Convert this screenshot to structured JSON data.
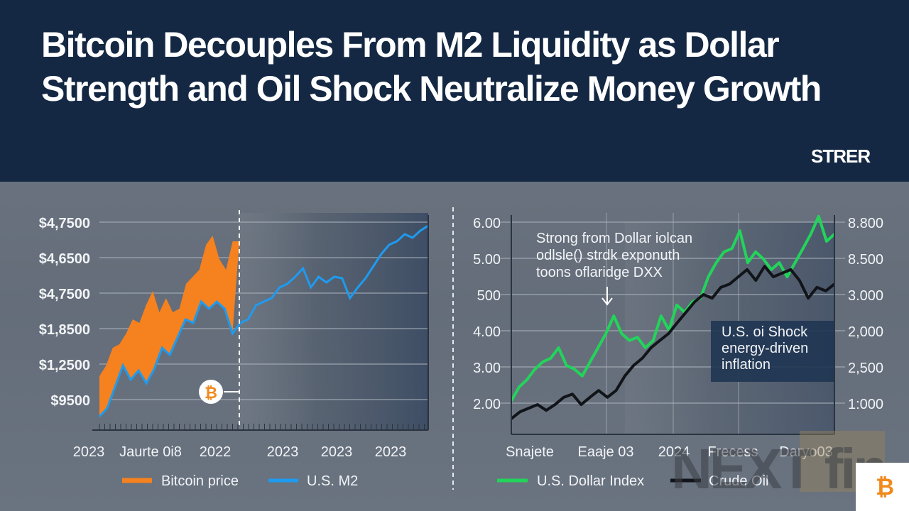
{
  "header": {
    "title": "Bitcoin Decouples From M2 Liquidity as Dollar Strength and Oil Shock Neutralize Money Growth",
    "logo": "STRER"
  },
  "watermark": {
    "text": "NEXT fin",
    "corner_icon": "bitcoin-icon"
  },
  "chart_data": [
    {
      "type": "area+line",
      "ylabels": [
        "$9500",
        "$1,2500",
        "$1,8500",
        "$4,7500",
        "$4,6500",
        "$4,7500"
      ],
      "ytick_levels": [
        0,
        1,
        2,
        3,
        4,
        5
      ],
      "xlabels": [
        "2023",
        "Jaurte 0i8",
        "2022",
        "2023",
        "2023",
        "2023"
      ],
      "grid": true,
      "legend": "bottom",
      "marker_icon": "bitcoin-icon",
      "series": [
        {
          "name": "Bitcoin price",
          "color": "#f5811f",
          "kind": "area",
          "values": [
            0.66,
            0.96,
            1.46,
            1.56,
            1.86,
            2.26,
            2.16,
            2.66,
            3.06,
            2.46,
            2.86,
            2.46,
            2.56,
            3.26,
            3.46,
            3.66,
            4.36,
            4.62,
            3.96,
            3.66,
            4.46,
            4.46
          ]
        },
        {
          "name": "U.S. M2",
          "color": "#1e9bf0",
          "kind": "line",
          "values": [
            -0.48,
            -0.24,
            0.36,
            0.96,
            0.56,
            0.82,
            0.46,
            0.86,
            1.46,
            1.26,
            1.76,
            2.26,
            2.16,
            2.76,
            2.56,
            2.76,
            2.56,
            1.86,
            2.16,
            2.26,
            2.66,
            2.76,
            2.86,
            3.16,
            3.26,
            3.46,
            3.7,
            3.16,
            3.46,
            3.3,
            3.46,
            3.42,
            2.86,
            3.16,
            3.42,
            3.76,
            4.1,
            4.36,
            4.46,
            4.66,
            4.56,
            4.76,
            4.9
          ]
        }
      ]
    },
    {
      "type": "line",
      "ylabels_left": [
        "2.00",
        "3.00",
        "4.00",
        "500",
        "5.00",
        "6.00"
      ],
      "ylabels_right": [
        "1:000",
        "2,500",
        "2,000",
        "3.000",
        "8.500",
        "8.800"
      ],
      "ytick_levels": [
        0,
        1,
        2,
        3,
        4,
        5
      ],
      "xlabels": [
        "Snajete",
        "Eaaje 03",
        "2024",
        "Frecess",
        "Daryo03"
      ],
      "grid": true,
      "legend": "bottom",
      "annotations": [
        "Strong from Dollar iolcan",
        "odlsle() strdk exponuth",
        "toons oflaridge DXX"
      ],
      "callout": [
        "U.S. oi Shock",
        "energy-driven",
        "inflation"
      ],
      "series": [
        {
          "name": "U.S. Dollar Index",
          "color": "#22d45a",
          "values": [
            0.06,
            0.45,
            0.65,
            0.94,
            1.14,
            1.24,
            1.53,
            1.04,
            0.94,
            0.75,
            1.14,
            1.53,
            1.92,
            2.41,
            1.92,
            1.73,
            1.82,
            1.53,
            1.73,
            2.41,
            2.02,
            2.71,
            2.51,
            2.8,
            2.9,
            3.49,
            3.88,
            4.18,
            4.27,
            4.76,
            3.88,
            4.18,
            3.98,
            3.69,
            3.88,
            3.49,
            3.88,
            4.27,
            4.67,
            5.16,
            4.47,
            4.67
          ]
        },
        {
          "name": "Crude Oil",
          "color": "#111418",
          "values": [
            -0.43,
            -0.24,
            -0.14,
            -0.04,
            -0.2,
            -0.04,
            0.16,
            0.25,
            -0.04,
            0.16,
            0.35,
            0.16,
            0.35,
            0.75,
            1.04,
            1.24,
            1.53,
            1.73,
            1.92,
            2.22,
            2.51,
            2.8,
            3.0,
            2.9,
            3.2,
            3.29,
            3.49,
            3.69,
            3.39,
            3.78,
            3.49,
            3.59,
            3.69,
            3.39,
            2.9,
            3.2,
            3.1,
            3.29
          ]
        }
      ]
    }
  ]
}
